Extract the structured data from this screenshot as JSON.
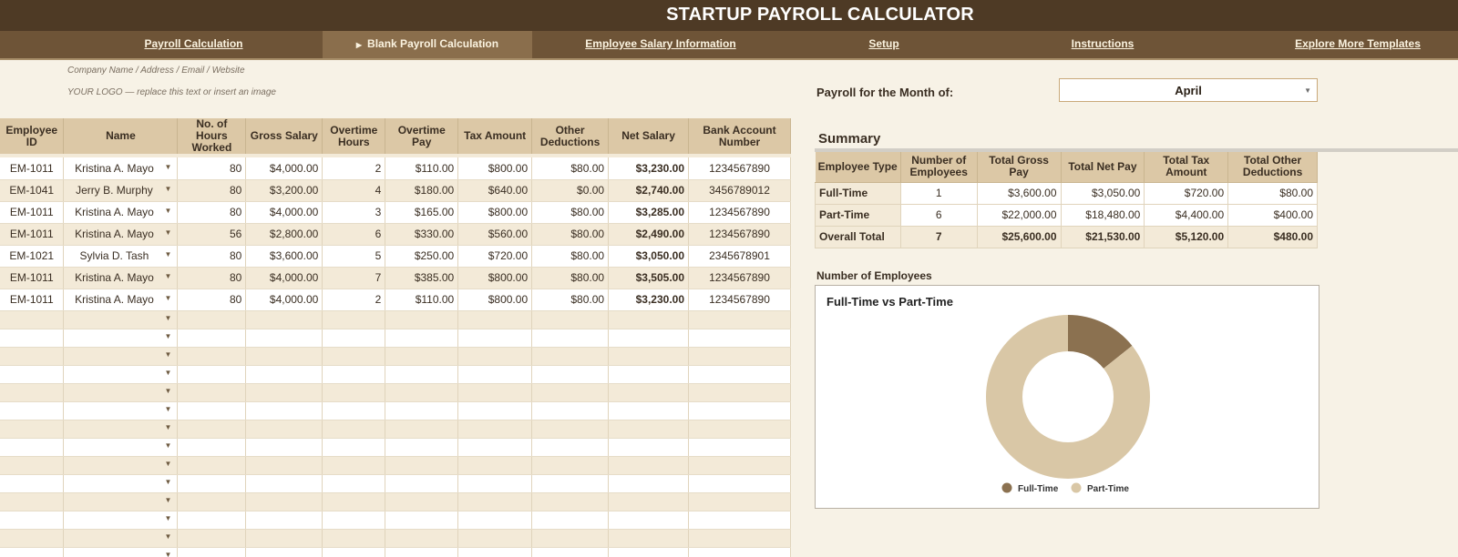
{
  "app": {
    "title": "STARTUP PAYROLL CALCULATOR"
  },
  "nav": {
    "items": [
      {
        "label": "Payroll Calculation"
      },
      {
        "label": "Blank Payroll Calculation",
        "active": true
      },
      {
        "label": "Employee Salary Information"
      },
      {
        "label": "Setup"
      },
      {
        "label": "Instructions"
      },
      {
        "label": "Explore More Templates"
      }
    ]
  },
  "company": {
    "info": "Company Name / Address / Email / Website",
    "logo_note": "YOUR LOGO — replace this text or insert an image"
  },
  "payroll_month": {
    "label": "Payroll for the Month of:",
    "value": "April"
  },
  "main_table": {
    "columns": [
      "Employee ID",
      "Name",
      "No. of Hours Worked",
      "Gross Salary",
      "Overtime Hours",
      "Overtime Pay",
      "Tax Amount",
      "Other Deductions",
      "Net Salary",
      "Bank Account Number"
    ],
    "rows": [
      [
        "EM-1011",
        "Kristina A. Mayo",
        "80",
        "$4,000.00",
        "2",
        "$110.00",
        "$800.00",
        "$80.00",
        "$3,230.00",
        "1234567890"
      ],
      [
        "EM-1041",
        "Jerry B. Murphy",
        "80",
        "$3,200.00",
        "4",
        "$180.00",
        "$640.00",
        "$0.00",
        "$2,740.00",
        "3456789012"
      ],
      [
        "EM-1011",
        "Kristina A. Mayo",
        "80",
        "$4,000.00",
        "3",
        "$165.00",
        "$800.00",
        "$80.00",
        "$3,285.00",
        "1234567890"
      ],
      [
        "EM-1011",
        "Kristina A. Mayo",
        "56",
        "$2,800.00",
        "6",
        "$330.00",
        "$560.00",
        "$80.00",
        "$2,490.00",
        "1234567890"
      ],
      [
        "EM-1021",
        "Sylvia D. Tash",
        "80",
        "$3,600.00",
        "5",
        "$250.00",
        "$720.00",
        "$80.00",
        "$3,050.00",
        "2345678901"
      ],
      [
        "EM-1011",
        "Kristina A. Mayo",
        "80",
        "$4,000.00",
        "7",
        "$385.00",
        "$800.00",
        "$80.00",
        "$3,505.00",
        "1234567890"
      ],
      [
        "EM-1011",
        "Kristina A. Mayo",
        "80",
        "$4,000.00",
        "2",
        "$110.00",
        "$800.00",
        "$80.00",
        "$3,230.00",
        "1234567890"
      ]
    ],
    "blank_rows": 15
  },
  "summary": {
    "title": "Summary",
    "columns": [
      "Employee Type",
      "Number of Employees",
      "Total Gross Pay",
      "Total Net Pay",
      "Total Tax Amount",
      "Total Other Deductions"
    ],
    "rows": [
      [
        "Full-Time",
        "1",
        "$3,600.00",
        "$3,050.00",
        "$720.00",
        "$80.00"
      ],
      [
        "Part-Time",
        "6",
        "$22,000.00",
        "$18,480.00",
        "$4,400.00",
        "$400.00"
      ]
    ],
    "total": [
      "Overall Total",
      "7",
      "$25,600.00",
      "$21,530.00",
      "$5,120.00",
      "$480.00"
    ]
  },
  "employee_chart_label": "Number of Employees",
  "chart_data": {
    "type": "pie",
    "donut": true,
    "title": "Full-Time vs Part-Time",
    "categories": [
      "Full-Time",
      "Part-Time"
    ],
    "values": [
      1,
      6
    ],
    "colors": [
      "#8b7150",
      "#d9c7a6"
    ],
    "legend": "bottom"
  }
}
